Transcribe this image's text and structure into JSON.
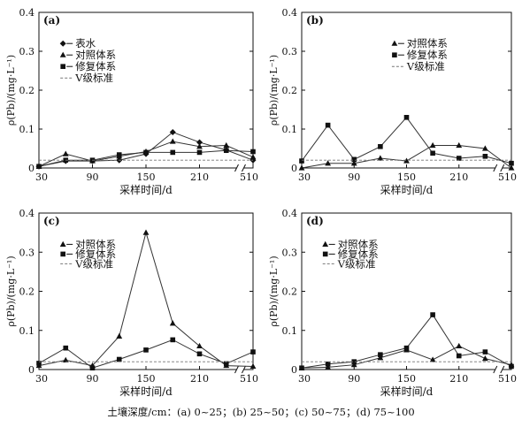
{
  "caption": "土壤深度/cm：(a) 0~25；(b) 25~50；(c) 50~75；(d) 75~100",
  "chart_data": [
    {
      "type": "line",
      "panel_label": "(a)",
      "xlabel": "采样时间/d",
      "ylabel": "ρ(Pb)/(mg·L⁻¹)",
      "ylim": [
        0,
        0.4
      ],
      "yticks": [
        "0",
        "0.1",
        "0.2",
        "0.3",
        "0.4"
      ],
      "xtick_labels": [
        "30",
        "90",
        "150",
        "210",
        "510"
      ],
      "x_scale_note": "broken axis between 240 and 510",
      "x": [
        30,
        60,
        90,
        120,
        150,
        180,
        210,
        240,
        510
      ],
      "legend_position": "upper-left",
      "series": [
        {
          "name": "表水",
          "marker": "diamond",
          "values": [
            0.004,
            0.018,
            0.018,
            0.02,
            0.036,
            0.092,
            0.066,
            0.046,
            0.02
          ]
        },
        {
          "name": "对照体系",
          "marker": "triangle",
          "values": [
            0.004,
            0.036,
            0.018,
            0.03,
            0.042,
            0.068,
            0.055,
            0.058,
            0.028
          ]
        },
        {
          "name": "修复体系",
          "marker": "square",
          "values": [
            0.004,
            0.02,
            0.02,
            0.034,
            0.04,
            0.04,
            0.04,
            0.045,
            0.042
          ]
        },
        {
          "name": "Ⅴ级标准",
          "marker": "dash",
          "values": [
            0.02,
            0.02,
            0.02,
            0.02,
            0.02,
            0.02,
            0.02,
            0.02,
            0.02
          ]
        }
      ]
    },
    {
      "type": "line",
      "panel_label": "(b)",
      "xlabel": "采样时间/d",
      "ylabel": "ρ(Pb)/(mg·L⁻¹)",
      "ylim": [
        0,
        0.4
      ],
      "yticks": [
        "0",
        "0.1",
        "0.2",
        "0.3",
        "0.4"
      ],
      "xtick_labels": [
        "30",
        "90",
        "150",
        "210",
        "510"
      ],
      "x_scale_note": "broken axis between 240 and 510",
      "x": [
        30,
        60,
        90,
        120,
        150,
        180,
        210,
        240,
        510
      ],
      "legend_position": "upper-right",
      "series": [
        {
          "name": "对照体系",
          "marker": "triangle",
          "values": [
            0.0,
            0.012,
            0.012,
            0.025,
            0.018,
            0.058,
            0.058,
            0.05,
            0.0
          ]
        },
        {
          "name": "修复体系",
          "marker": "square",
          "values": [
            0.018,
            0.11,
            0.022,
            0.055,
            0.13,
            0.038,
            0.025,
            0.03,
            0.012
          ]
        },
        {
          "name": "Ⅴ级标准",
          "marker": "dash",
          "values": [
            0.02,
            0.02,
            0.02,
            0.02,
            0.02,
            0.02,
            0.02,
            0.02,
            0.02
          ]
        }
      ]
    },
    {
      "type": "line",
      "panel_label": "(c)",
      "xlabel": "采样时间/d",
      "ylabel": "ρ(Pb)/(mg·L⁻¹)",
      "ylim": [
        0,
        0.4
      ],
      "yticks": [
        "0",
        "0.1",
        "0.2",
        "0.3",
        "0.4"
      ],
      "xtick_labels": [
        "30",
        "90",
        "150",
        "210",
        "510"
      ],
      "x_scale_note": "broken axis between 240 and 510",
      "x": [
        30,
        60,
        90,
        120,
        150,
        180,
        210,
        240,
        510
      ],
      "legend_position": "upper-left",
      "series": [
        {
          "name": "对照体系",
          "marker": "triangle",
          "values": [
            0.01,
            0.024,
            0.01,
            0.085,
            0.35,
            0.118,
            0.06,
            0.01,
            0.008
          ]
        },
        {
          "name": "修复体系",
          "marker": "square",
          "values": [
            0.016,
            0.055,
            0.004,
            0.026,
            0.05,
            0.076,
            0.04,
            0.015,
            0.045
          ]
        },
        {
          "name": "Ⅴ级标准",
          "marker": "dash",
          "values": [
            0.02,
            0.02,
            0.02,
            0.02,
            0.02,
            0.02,
            0.02,
            0.02,
            0.02
          ]
        }
      ]
    },
    {
      "type": "line",
      "panel_label": "(d)",
      "xlabel": "采样时间/d",
      "ylabel": "ρ(Pb)/(mg·L⁻¹)",
      "ylim": [
        0,
        0.4
      ],
      "yticks": [
        "0",
        "0.1",
        "0.2",
        "0.3",
        "0.4"
      ],
      "xtick_labels": [
        "30",
        "90",
        "150",
        "210",
        "510"
      ],
      "x_scale_note": "broken axis between 240 and 510",
      "x": [
        30,
        60,
        90,
        120,
        150,
        180,
        210,
        240,
        510
      ],
      "legend_position": "upper-left",
      "series": [
        {
          "name": "对照体系",
          "marker": "triangle",
          "values": [
            0.004,
            0.006,
            0.012,
            0.03,
            0.05,
            0.025,
            0.06,
            0.028,
            0.012
          ]
        },
        {
          "name": "修复体系",
          "marker": "square",
          "values": [
            0.004,
            0.014,
            0.02,
            0.038,
            0.055,
            0.14,
            0.035,
            0.045,
            0.008
          ]
        },
        {
          "name": "Ⅴ级标准",
          "marker": "dash",
          "values": [
            0.02,
            0.02,
            0.02,
            0.02,
            0.02,
            0.02,
            0.02,
            0.02,
            0.02
          ]
        }
      ]
    }
  ]
}
